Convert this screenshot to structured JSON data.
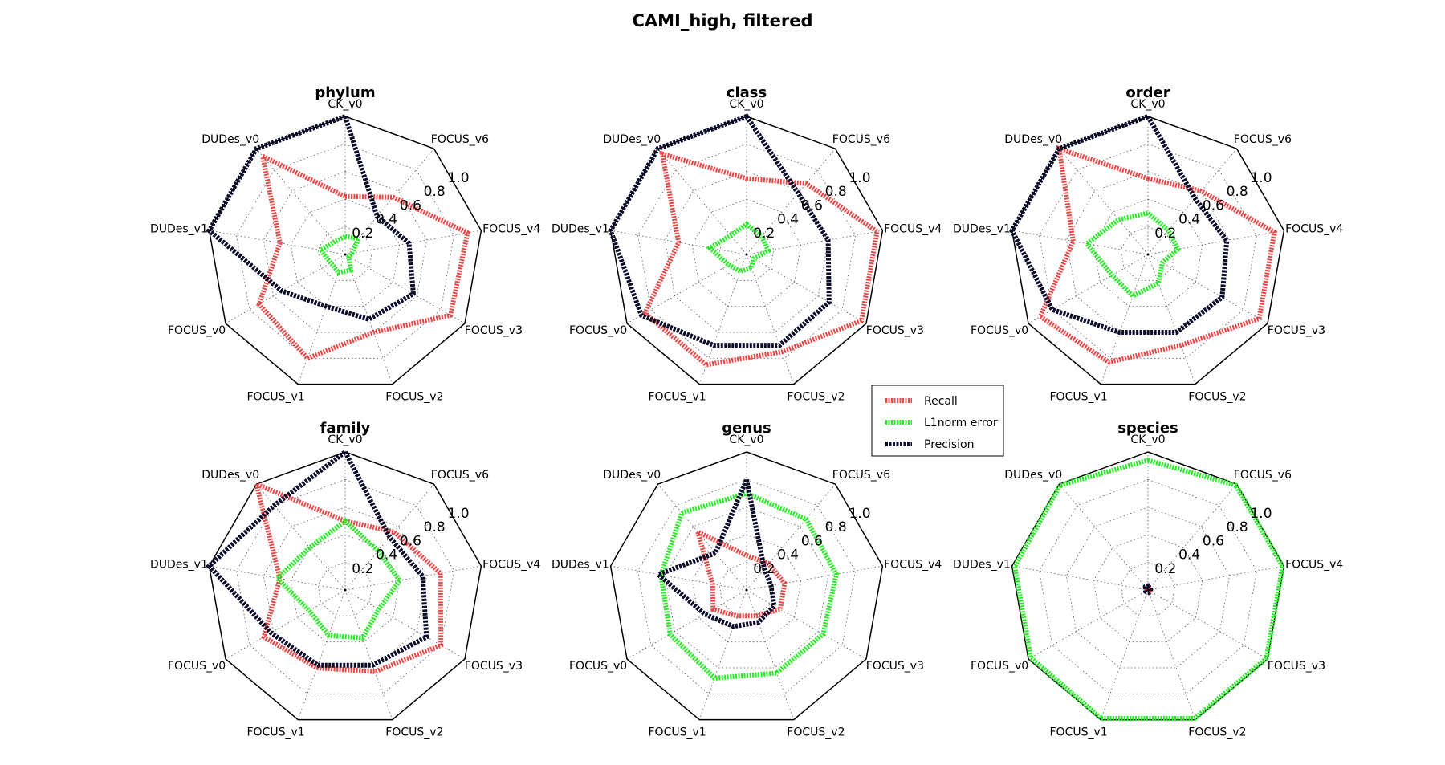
{
  "figure": {
    "title": "CAMI_high, filtered"
  },
  "colors": {
    "Recall": "#ee4444",
    "L1norm error": "#22ee22",
    "Precision": "#0a0a2a"
  },
  "chart_data": [
    {
      "type": "radar",
      "title": "phylum",
      "axes": [
        "CK_v0",
        "FOCUS_v6",
        "FOCUS_v4",
        "FOCUS_v3",
        "FOCUS_v2",
        "FOCUS_v1",
        "FOCUS_v0",
        "DUDes_v1",
        "DUDes_v0"
      ],
      "rlim": [
        0,
        1.0
      ],
      "rticks": [
        "0.2",
        "0.4",
        "0.6",
        "0.8",
        "1.0"
      ],
      "grid": true,
      "series": [
        {
          "name": "Recall",
          "values": [
            0.42,
            0.54,
            0.9,
            0.88,
            0.6,
            0.8,
            0.72,
            0.48,
            0.93
          ]
        },
        {
          "name": "L1norm error",
          "values": [
            0.13,
            0.15,
            0.05,
            0.03,
            0.12,
            0.14,
            0.12,
            0.18,
            0.12
          ]
        },
        {
          "name": "Precision",
          "values": [
            1.0,
            0.36,
            0.47,
            0.57,
            0.5,
            0.4,
            0.53,
            1.0,
            1.0
          ]
        }
      ]
    },
    {
      "type": "radar",
      "title": "class",
      "axes": [
        "CK_v0",
        "FOCUS_v6",
        "FOCUS_v4",
        "FOCUS_v3",
        "FOCUS_v2",
        "FOCUS_v1",
        "FOCUS_v0",
        "DUDes_v1",
        "DUDes_v0"
      ],
      "rlim": [
        0,
        1.0
      ],
      "rticks": [
        "0.2",
        "0.4",
        "0.6",
        "0.8",
        "1.0"
      ],
      "grid": true,
      "series": [
        {
          "name": "Recall",
          "values": [
            0.55,
            0.67,
            0.96,
            0.96,
            0.75,
            0.85,
            0.85,
            0.5,
            0.95
          ]
        },
        {
          "name": "L1norm error",
          "values": [
            0.22,
            0.17,
            0.16,
            0.06,
            0.1,
            0.13,
            0.15,
            0.27,
            0.18
          ]
        },
        {
          "name": "Precision",
          "values": [
            1.0,
            0.58,
            0.6,
            0.69,
            0.7,
            0.7,
            0.88,
            1.0,
            1.0
          ]
        }
      ]
    },
    {
      "type": "radar",
      "title": "order",
      "axes": [
        "CK_v0",
        "FOCUS_v6",
        "FOCUS_v4",
        "FOCUS_v3",
        "FOCUS_v2",
        "FOCUS_v1",
        "FOCUS_v0",
        "DUDes_v1",
        "DUDes_v0"
      ],
      "rlim": [
        0,
        1.0
      ],
      "rticks": [
        "0.2",
        "0.4",
        "0.6",
        "0.8",
        "1.0"
      ],
      "grid": true,
      "series": [
        {
          "name": "Recall",
          "values": [
            0.55,
            0.6,
            0.93,
            0.93,
            0.7,
            0.83,
            0.9,
            0.55,
            1.0
          ]
        },
        {
          "name": "L1norm error",
          "values": [
            0.3,
            0.23,
            0.22,
            0.12,
            0.22,
            0.32,
            0.3,
            0.45,
            0.33
          ]
        },
        {
          "name": "Precision",
          "values": [
            1.0,
            0.53,
            0.58,
            0.62,
            0.6,
            0.6,
            0.8,
            1.0,
            1.0
          ]
        }
      ]
    },
    {
      "type": "radar",
      "title": "family",
      "axes": [
        "CK_v0",
        "FOCUS_v6",
        "FOCUS_v4",
        "FOCUS_v3",
        "FOCUS_v2",
        "FOCUS_v1",
        "FOCUS_v0",
        "DUDes_v1",
        "DUDes_v0"
      ],
      "rlim": [
        0,
        1.0
      ],
      "rticks": [
        "0.2",
        "0.4",
        "0.6",
        "0.8",
        "1.0"
      ],
      "grid": true,
      "series": [
        {
          "name": "Recall",
          "values": [
            0.5,
            0.55,
            0.7,
            0.8,
            0.63,
            0.6,
            0.68,
            0.48,
            1.0
          ]
        },
        {
          "name": "L1norm error",
          "values": [
            0.5,
            0.37,
            0.4,
            0.28,
            0.37,
            0.35,
            0.3,
            0.5,
            0.4
          ]
        },
        {
          "name": "Precision",
          "values": [
            1.0,
            0.5,
            0.57,
            0.68,
            0.58,
            0.58,
            0.62,
            1.0,
            0.8
          ]
        }
      ]
    },
    {
      "type": "radar",
      "title": "genus",
      "axes": [
        "CK_v0",
        "FOCUS_v6",
        "FOCUS_v4",
        "FOCUS_v3",
        "FOCUS_v2",
        "FOCUS_v1",
        "FOCUS_v0",
        "DUDes_v1",
        "DUDes_v0"
      ],
      "rlim": [
        0,
        1.0
      ],
      "rticks": [
        "0.2",
        "0.4",
        "0.6",
        "0.8",
        "1.0"
      ],
      "grid": true,
      "series": [
        {
          "name": "Recall",
          "values": [
            0.25,
            0.25,
            0.28,
            0.28,
            0.2,
            0.2,
            0.28,
            0.25,
            0.55
          ]
        },
        {
          "name": "L1norm error",
          "values": [
            0.7,
            0.67,
            0.66,
            0.64,
            0.64,
            0.68,
            0.64,
            0.63,
            0.73
          ]
        },
        {
          "name": "Precision",
          "values": [
            0.8,
            0.2,
            0.18,
            0.23,
            0.25,
            0.28,
            0.35,
            0.65,
            0.35
          ]
        }
      ]
    },
    {
      "type": "radar",
      "title": "species",
      "axes": [
        "CK_v0",
        "FOCUS_v6",
        "FOCUS_v4",
        "FOCUS_v3",
        "FOCUS_v2",
        "FOCUS_v1",
        "FOCUS_v0",
        "DUDes_v1",
        "DUDes_v0"
      ],
      "rlim": [
        0,
        1.0
      ],
      "rticks": [
        "0.2",
        "0.4",
        "0.6",
        "0.8",
        "1.0"
      ],
      "grid": true,
      "series": [
        {
          "name": "Recall",
          "values": [
            0.01,
            0.01,
            0.01,
            0.01,
            0.01,
            0.01,
            0.01,
            0.01,
            0.01
          ]
        },
        {
          "name": "L1norm error",
          "values": [
            0.94,
            0.99,
            0.99,
            0.99,
            0.99,
            0.99,
            0.98,
            0.98,
            0.99
          ]
        },
        {
          "name": "Precision",
          "values": [
            0.03,
            0.02,
            0.02,
            0.02,
            0.02,
            0.02,
            0.02,
            0.02,
            0.03
          ]
        }
      ]
    }
  ],
  "legend": {
    "placement": "between-panels",
    "entries": [
      "Recall",
      "L1norm error",
      "Precision"
    ]
  }
}
